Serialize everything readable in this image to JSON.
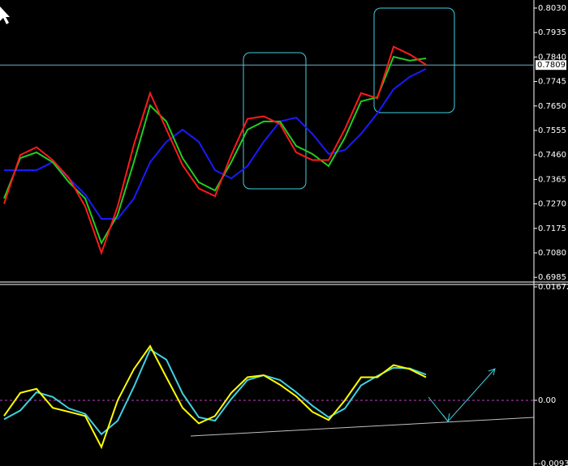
{
  "chart_data": [
    {
      "type": "line",
      "ylim": [
        0.697,
        0.8055
      ],
      "yticks": [
        {
          "value": 0.803,
          "label": "0.8030"
        },
        0.7935,
        {
          "value": 0.784,
          "label": "0.7840"
        },
        0.7745,
        {
          "value": 0.765,
          "label": "0.7650"
        },
        0.7555,
        {
          "value": 0.746,
          "label": "0.7460"
        },
        0.7365,
        {
          "value": 0.727,
          "label": "0.7270"
        },
        0.7175,
        {
          "value": 0.708,
          "label": "0.7080"
        },
        0.6985
      ],
      "current_price": 0.7809,
      "series": [
        {
          "color": "#1a1aff",
          "values": [
            0.7401,
            0.7401,
            0.7401,
            0.7432,
            0.7369,
            0.7306,
            0.7212,
            0.7212,
            0.7291,
            0.7432,
            0.7511,
            0.7558,
            0.7511,
            0.7401,
            0.7369,
            0.7417,
            0.7511,
            0.759,
            0.7605,
            0.7542,
            0.7464,
            0.7479,
            0.7542,
            0.7621,
            0.7715,
            0.7763,
            0.7794
          ]
        },
        {
          "color": "#22cc22",
          "values": [
            0.7291,
            0.7448,
            0.747,
            0.7432,
            0.7354,
            0.7291,
            0.7118,
            0.7228,
            0.7432,
            0.7652,
            0.759,
            0.7448,
            0.7354,
            0.7322,
            0.7432,
            0.7558,
            0.759,
            0.759,
            0.7495,
            0.7464,
            0.7417,
            0.7527,
            0.7668,
            0.7684,
            0.7841,
            0.7826,
            0.7835
          ]
        },
        {
          "color": "#ff1a1a",
          "values": [
            0.727,
            0.746,
            0.749,
            0.744,
            0.737,
            0.726,
            0.708,
            0.726,
            0.75,
            0.77,
            0.756,
            0.742,
            0.733,
            0.73,
            0.746,
            0.76,
            0.761,
            0.758,
            0.747,
            0.744,
            0.744,
            0.756,
            0.77,
            0.768,
            0.788,
            0.785,
            0.781
          ]
        }
      ]
    },
    {
      "type": "line",
      "ylim": [
        -0.00932,
        0.01672
      ],
      "yticks": [
        0.01672,
        {
          "value": 0,
          "label": "0.00"
        },
        -0.00932
      ],
      "series": [
        {
          "color": "#40d0e0",
          "values": [
            -0.0028,
            -0.0015,
            0.0012,
            0.0005,
            -0.0012,
            -0.002,
            -0.005,
            -0.003,
            0.002,
            0.0075,
            0.006,
            0.001,
            -0.0025,
            -0.003,
            0.0002,
            0.003,
            0.0037,
            0.003,
            0.0012,
            -0.0008,
            -0.0025,
            -0.0012,
            0.0022,
            0.0036,
            0.0048,
            0.0047,
            0.0038
          ]
        },
        {
          "color": "#ffff00",
          "values": [
            -0.0023,
            0.0011,
            0.0017,
            -0.0011,
            -0.0017,
            -0.0023,
            -0.0069,
            0,
            0.0046,
            0.008,
            0.0034,
            -0.0011,
            -0.0034,
            -0.0023,
            0.0011,
            0.0034,
            0.0037,
            0.0023,
            0.0006,
            -0.0017,
            -0.0029,
            0,
            0.0034,
            0.0034,
            0.0052,
            0.0046,
            0.0034
          ]
        }
      ]
    }
  ]
}
